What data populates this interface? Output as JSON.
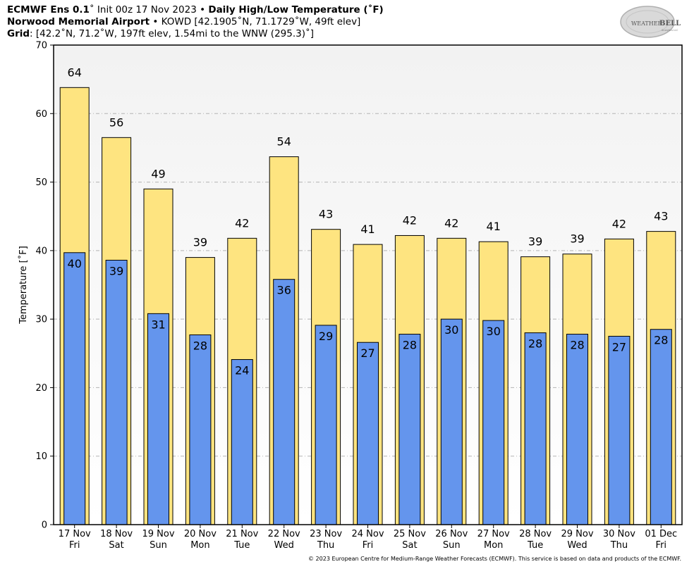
{
  "header": {
    "model": "ECMWF Ens 0.1",
    "init_text": "˚ Init 00z 17 Nov 2023",
    "bullet": "•",
    "product": "Daily High/Low Temperature (˚F)",
    "station_name": "Norwood Memorial Airport",
    "station_details": "KOWD [42.1905˚N, 71.1729˚W, 49ft elev]",
    "grid_label": "Grid",
    "grid_details": ": [42.2˚N, 71.2˚W, 197ft elev, 1.54mi to the WNW (295.3)˚]"
  },
  "logo": {
    "text_weather": "WEATHER",
    "text_bell": "BELL",
    "text_sub": "Analytics LLC"
  },
  "footer": {
    "copyright": "© 2023 European Centre for Medium-Range Weather Forecasts (ECMWF). This service is based on data and products of the ECMWF."
  },
  "colors": {
    "high_fill": "#fee480",
    "low_fill": "#6495ed",
    "plot_bg_top": "#f2f2f2",
    "plot_bg_bottom": "#ffffff"
  },
  "chart_data": {
    "type": "bar",
    "ylabel": "Temperature [˚F]",
    "ylim": [
      0,
      70
    ],
    "yticks": [
      "0",
      "10",
      "20",
      "30",
      "40",
      "50",
      "60",
      "70"
    ],
    "grid": true,
    "categories": [
      [
        "17 Nov",
        "Fri"
      ],
      [
        "18 Nov",
        "Sat"
      ],
      [
        "19 Nov",
        "Sun"
      ],
      [
        "20 Nov",
        "Mon"
      ],
      [
        "21 Nov",
        "Tue"
      ],
      [
        "22 Nov",
        "Wed"
      ],
      [
        "23 Nov",
        "Thu"
      ],
      [
        "24 Nov",
        "Fri"
      ],
      [
        "25 Nov",
        "Sat"
      ],
      [
        "26 Nov",
        "Sun"
      ],
      [
        "27 Nov",
        "Mon"
      ],
      [
        "28 Nov",
        "Tue"
      ],
      [
        "29 Nov",
        "Wed"
      ],
      [
        "30 Nov",
        "Thu"
      ],
      [
        "01 Dec",
        "Fri"
      ]
    ],
    "high": {
      "values": [
        63.8,
        56.5,
        49.0,
        39.0,
        41.8,
        53.7,
        43.1,
        40.9,
        42.2,
        41.8,
        41.3,
        39.1,
        39.5,
        41.7,
        42.8
      ],
      "labels": [
        "64",
        "56",
        "49",
        "39",
        "42",
        "54",
        "43",
        "41",
        "42",
        "42",
        "41",
        "39",
        "39",
        "42",
        "43"
      ]
    },
    "low": {
      "values": [
        39.7,
        38.6,
        30.8,
        27.7,
        24.1,
        35.8,
        29.1,
        26.6,
        27.8,
        30.0,
        29.8,
        28.0,
        27.8,
        27.5,
        28.5
      ],
      "labels": [
        "40",
        "39",
        "31",
        "28",
        "24",
        "36",
        "29",
        "27",
        "28",
        "30",
        "30",
        "28",
        "28",
        "27",
        "28"
      ]
    }
  }
}
